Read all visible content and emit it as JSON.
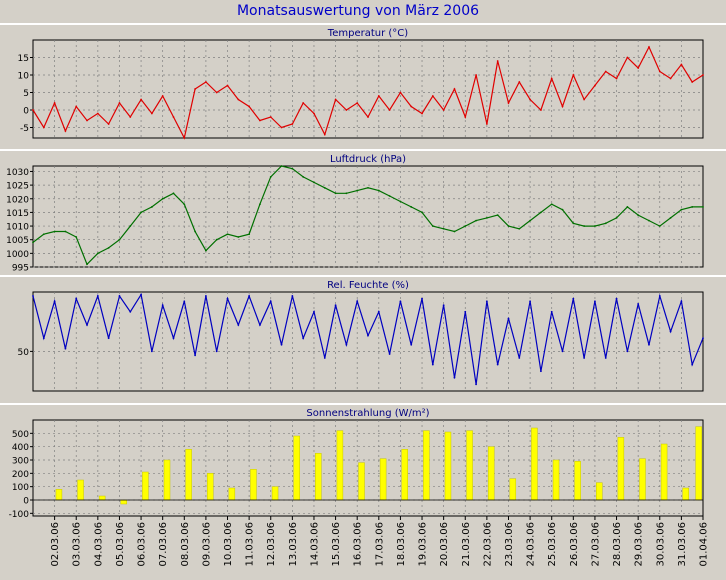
{
  "window": {
    "title": "Monatsauswertung von März 2006",
    "background": "#d4d0c8",
    "plot_background": "#d4d0c8",
    "title_color": "#0000c8",
    "panel_title_color": "#000080"
  },
  "x_axis": {
    "tick_labels": [
      "02.03.06",
      "03.03.06",
      "04.03.06",
      "05.03.06",
      "06.03.06",
      "07.03.06",
      "08.03.06",
      "09.03.06",
      "10.03.06",
      "11.03.06",
      "12.03.06",
      "13.03.06",
      "14.03.06",
      "15.03.06",
      "16.03.06",
      "17.03.06",
      "18.03.06",
      "19.03.06",
      "20.03.06",
      "21.03.06",
      "22.03.06",
      "23.03.06",
      "24.03.06",
      "25.03.06",
      "26.03.06",
      "27.03.06",
      "28.03.06",
      "29.03.06",
      "30.03.06",
      "31.03.06",
      "01.04.06"
    ],
    "range_days": [
      1,
      32
    ],
    "grid": true
  },
  "chart_data": [
    {
      "type": "line",
      "title": "Temperatur (°C)",
      "color": "#e00000",
      "ylim": [
        -8,
        20
      ],
      "y_ticks": [
        15,
        10,
        5,
        0,
        -5
      ],
      "grid": true,
      "series": [
        {
          "x": [
            1.0,
            1.5,
            2.0,
            2.5,
            3.0,
            3.5,
            4.0,
            4.5,
            5.0,
            5.5,
            6.0,
            6.5,
            7.0,
            7.5,
            8.0,
            8.5,
            9.0,
            9.5,
            10.0,
            10.5,
            11.0,
            11.5,
            12.0,
            12.5,
            13.0,
            13.5,
            14.0,
            14.5,
            15.0,
            15.5,
            16.0,
            16.5,
            17.0,
            17.5,
            18.0,
            18.5,
            19.0,
            19.5,
            20.0,
            20.5,
            21.0,
            21.5,
            22.0,
            22.5,
            23.0,
            23.5,
            24.0,
            24.5,
            25.0,
            25.5,
            26.0,
            26.5,
            27.0,
            27.5,
            28.0,
            28.5,
            29.0,
            29.5,
            30.0,
            30.5,
            31.0,
            31.5,
            32.0
          ],
          "values": [
            0,
            -5,
            2,
            -6,
            1,
            -3,
            -1,
            -4,
            2,
            -2,
            3,
            -1,
            4,
            -2,
            -8,
            6,
            8,
            5,
            7,
            3,
            1,
            -3,
            -2,
            -5,
            -4,
            2,
            -1,
            -7,
            3,
            0,
            2,
            -2,
            4,
            0,
            5,
            1,
            -1,
            4,
            0,
            6,
            -2,
            10,
            -4,
            14,
            2,
            8,
            3,
            0,
            9,
            1,
            10,
            3,
            7,
            11,
            9,
            15,
            12,
            18,
            11,
            9,
            13,
            8,
            10
          ]
        }
      ]
    },
    {
      "type": "line",
      "title": "Luftdruck (hPa)",
      "color": "#007000",
      "ylim": [
        995,
        1032
      ],
      "y_ticks": [
        1030,
        1025,
        1020,
        1015,
        1010,
        1005,
        1000,
        995
      ],
      "grid": true,
      "series": [
        {
          "x": [
            1.0,
            1.5,
            2.0,
            2.5,
            3.0,
            3.5,
            4.0,
            4.5,
            5.0,
            5.5,
            6.0,
            6.5,
            7.0,
            7.5,
            8.0,
            8.5,
            9.0,
            9.5,
            10.0,
            10.5,
            11.0,
            11.5,
            12.0,
            12.5,
            13.0,
            13.5,
            14.0,
            14.5,
            15.0,
            15.5,
            16.0,
            16.5,
            17.0,
            17.5,
            18.0,
            18.5,
            19.0,
            19.5,
            20.0,
            20.5,
            21.0,
            21.5,
            22.0,
            22.5,
            23.0,
            23.5,
            24.0,
            24.5,
            25.0,
            25.5,
            26.0,
            26.5,
            27.0,
            27.5,
            28.0,
            28.5,
            29.0,
            29.5,
            30.0,
            30.5,
            31.0,
            31.5,
            32.0
          ],
          "values": [
            1004,
            1007,
            1008,
            1008,
            1006,
            996,
            1000,
            1002,
            1005,
            1010,
            1015,
            1017,
            1020,
            1022,
            1018,
            1008,
            1001,
            1005,
            1007,
            1006,
            1007,
            1018,
            1028,
            1032,
            1031,
            1028,
            1026,
            1024,
            1022,
            1022,
            1023,
            1024,
            1023,
            1021,
            1019,
            1017,
            1015,
            1010,
            1009,
            1008,
            1010,
            1012,
            1013,
            1014,
            1010,
            1009,
            1012,
            1015,
            1018,
            1016,
            1011,
            1010,
            1010,
            1011,
            1013,
            1017,
            1014,
            1012,
            1010,
            1013,
            1016,
            1017,
            1017
          ]
        }
      ]
    },
    {
      "type": "line",
      "title": "Rel. Feuchte (%)",
      "color": "#0000c0",
      "ylim": [
        20,
        95
      ],
      "y_ticks": [
        50
      ],
      "grid": true,
      "series": [
        {
          "x": [
            1.0,
            1.5,
            2.0,
            2.5,
            3.0,
            3.5,
            4.0,
            4.5,
            5.0,
            5.5,
            6.0,
            6.5,
            7.0,
            7.5,
            8.0,
            8.5,
            9.0,
            9.5,
            10.0,
            10.5,
            11.0,
            11.5,
            12.0,
            12.5,
            13.0,
            13.5,
            14.0,
            14.5,
            15.0,
            15.5,
            16.0,
            16.5,
            17.0,
            17.5,
            18.0,
            18.5,
            19.0,
            19.5,
            20.0,
            20.5,
            21.0,
            21.5,
            22.0,
            22.5,
            23.0,
            23.5,
            24.0,
            24.5,
            25.0,
            25.5,
            26.0,
            26.5,
            27.0,
            27.5,
            28.0,
            28.5,
            29.0,
            29.5,
            30.0,
            30.5,
            31.0,
            31.5,
            32.0
          ],
          "values": [
            92,
            60,
            88,
            52,
            90,
            70,
            92,
            60,
            92,
            80,
            93,
            50,
            85,
            60,
            88,
            47,
            92,
            50,
            90,
            70,
            92,
            70,
            88,
            55,
            92,
            60,
            80,
            45,
            85,
            55,
            88,
            62,
            80,
            48,
            88,
            55,
            90,
            40,
            85,
            30,
            80,
            25,
            88,
            40,
            75,
            45,
            88,
            35,
            80,
            50,
            90,
            45,
            88,
            45,
            90,
            50,
            86,
            55,
            92,
            65,
            88,
            40,
            60
          ]
        }
      ]
    },
    {
      "type": "bar",
      "title": "Sonnenstrahlung (W/m²)",
      "color": "#ffff00",
      "ylim": [
        -120,
        600
      ],
      "y_ticks": [
        500,
        400,
        300,
        200,
        100,
        0,
        -100
      ],
      "grid": true,
      "series": [
        {
          "x": [
            2.2,
            3.2,
            4.2,
            5.2,
            6.2,
            7.2,
            8.2,
            9.2,
            10.2,
            11.2,
            12.2,
            13.2,
            14.2,
            15.2,
            16.2,
            17.2,
            18.2,
            19.2,
            20.2,
            21.2,
            22.2,
            23.2,
            24.2,
            25.2,
            26.2,
            27.2,
            28.2,
            29.2,
            30.2,
            31.2,
            31.8
          ],
          "values": [
            80,
            150,
            30,
            -30,
            210,
            300,
            380,
            200,
            90,
            230,
            100,
            480,
            350,
            520,
            280,
            310,
            380,
            520,
            510,
            520,
            400,
            160,
            540,
            300,
            290,
            130,
            470,
            310,
            420,
            90,
            550
          ]
        }
      ]
    }
  ]
}
